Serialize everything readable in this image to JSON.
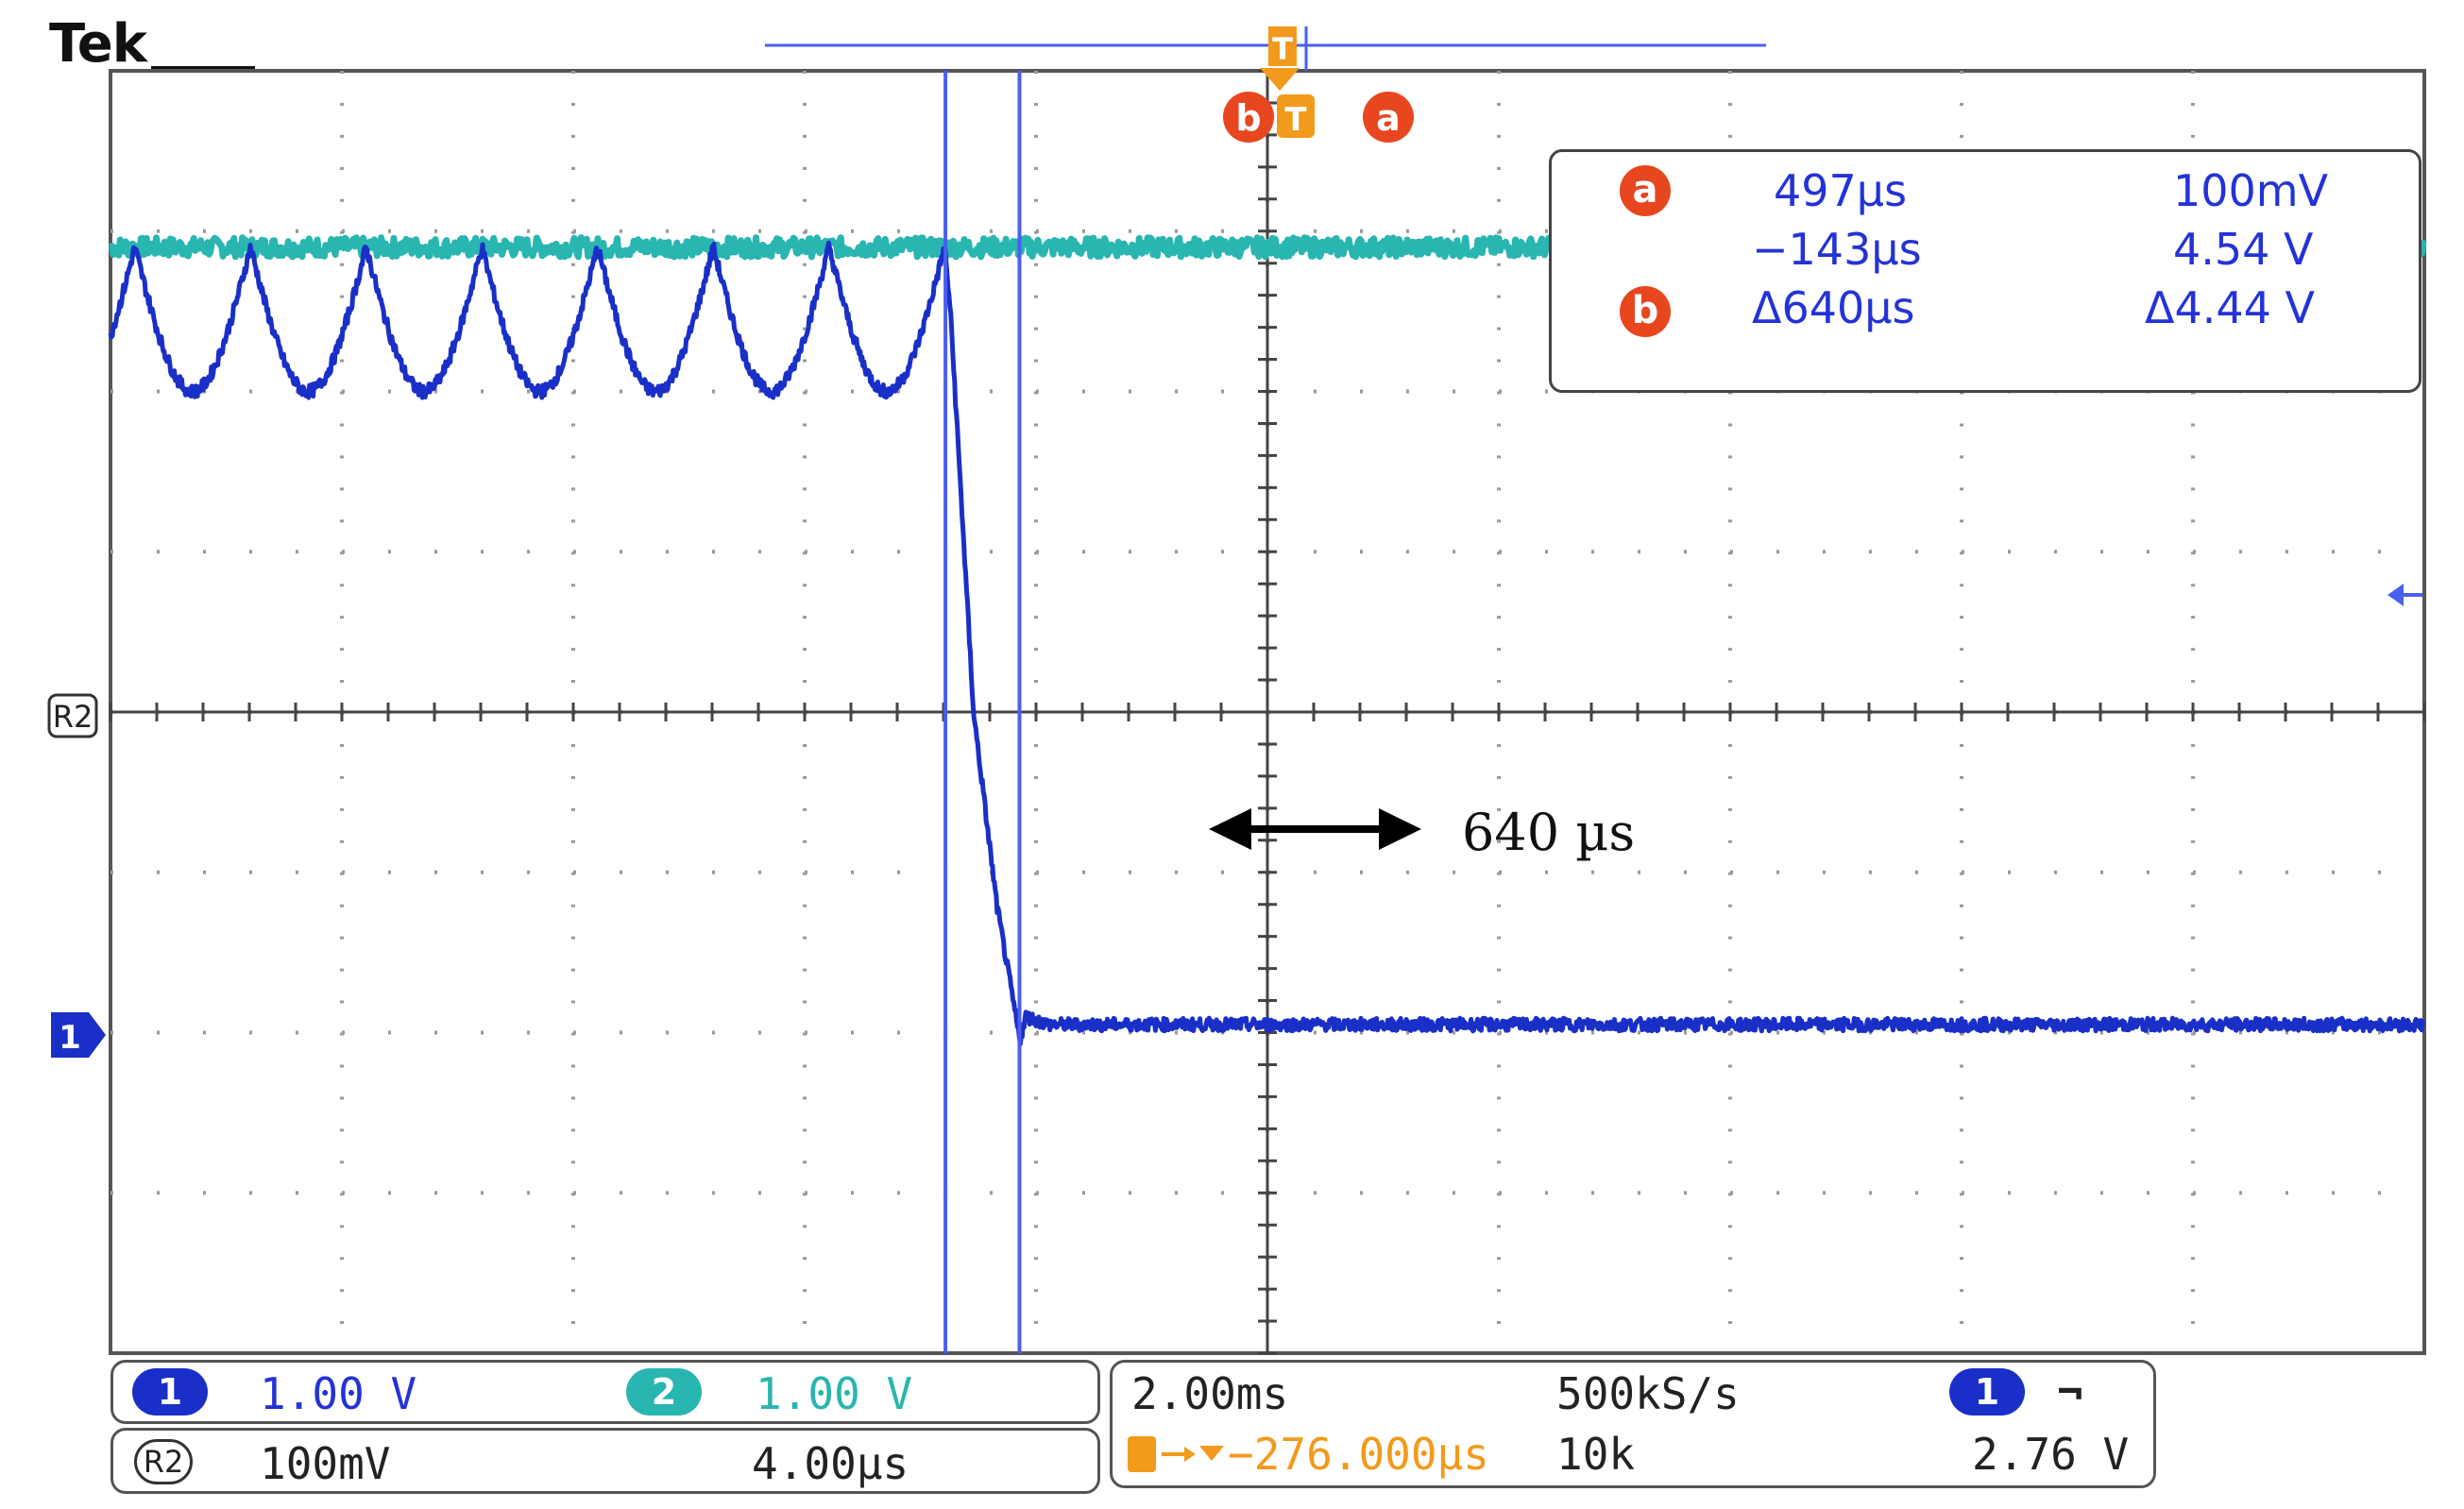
{
  "brand": "Tek",
  "colors": {
    "ch1": "#1a2fc8",
    "ch2": "#29b5b0",
    "cursor": "#4a5ff0",
    "trigger": "#f29a1c",
    "badge": "#e8461f",
    "grid": "#9a9a9a",
    "text_blue": "#2433d6"
  },
  "cursor_markers": {
    "a_label": "a",
    "b_label": "b",
    "trigger_label": "T"
  },
  "readout": {
    "a_label": "a",
    "b_label": "b",
    "a_time": "497µs",
    "a_volt": "100mV",
    "b_time": "−143µs",
    "b_volt": "4.54 V",
    "delta_time": "Δ640µs",
    "delta_volt": "Δ4.44 V"
  },
  "annotation": {
    "text": "640 µs"
  },
  "left_markers": {
    "ref": "R2",
    "ch1": "1"
  },
  "status": {
    "ch1_label": "1",
    "ch1_scale": "1.00 V",
    "ch2_label": "2",
    "ch2_scale": "1.00 V",
    "ref_label": "R2",
    "ref_scale": "100mV",
    "ref_time": "4.00µs",
    "timebase": "2.00ms",
    "sample_rate": "500kS/s",
    "trigger_source": "1",
    "trigger_slope_icon": "falling-edge-icon",
    "trigger_slope_glyph": "⌐",
    "trigger_position": "−276.000µs",
    "record_length": "10k",
    "trigger_level": "2.76 V"
  },
  "chart_data": {
    "type": "line",
    "grid": true,
    "x_divisions": 10,
    "y_divisions": 8,
    "x_unit": "ms",
    "xlim": [
      -7.36,
      12.64
    ],
    "series": [
      {
        "channel": "ch2",
        "color": "#29b5b0",
        "x": [
          -7.36,
          -0.15,
          0.5,
          12.64
        ],
        "y": [
          6.9,
          6.9,
          6.9,
          6.9
        ]
      },
      {
        "channel": "ch1",
        "color": "#1a2fc8",
        "ripple_period_ms": 1.0,
        "ripple_high_div": 6.9,
        "ripple_low_div": 6.0,
        "x": [
          -7.36,
          -0.15,
          -0.1,
          0.1,
          0.3,
          0.5,
          0.55,
          0.75,
          12.64
        ],
        "y": [
          6.9,
          6.9,
          6.5,
          4.0,
          2.8,
          1.95,
          2.1,
          2.05,
          2.05
        ]
      }
    ],
    "cursors": [
      {
        "name": "b",
        "x": -0.143
      },
      {
        "name": "a",
        "x": 0.497
      }
    ]
  }
}
